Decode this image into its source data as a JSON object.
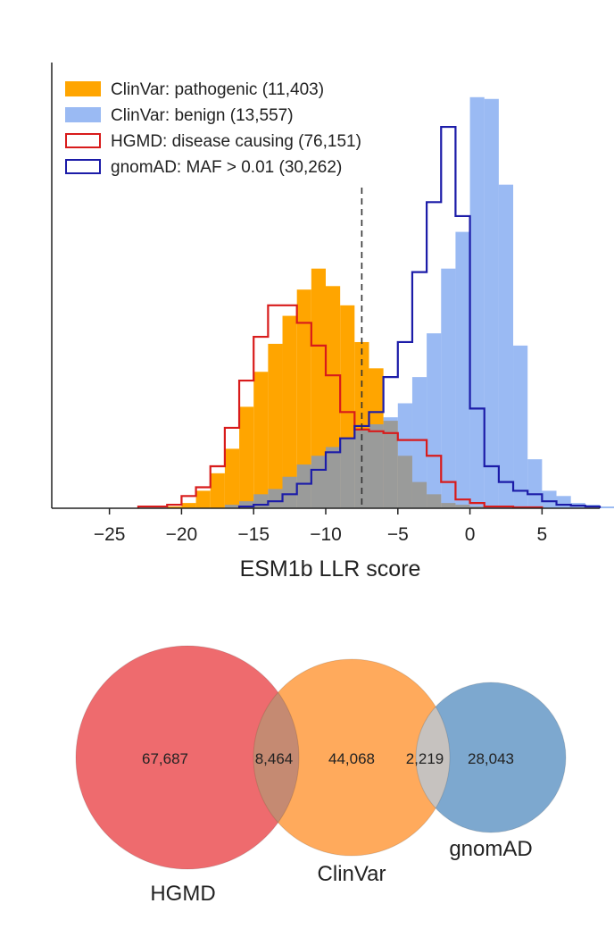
{
  "chart_data": [
    {
      "type": "histogram",
      "xlabel": "ESM1b LLR score",
      "ylabel": "",
      "xlim": [
        -29,
        9
      ],
      "xticks": [
        -25,
        -20,
        -15,
        -10,
        -5,
        0,
        5
      ],
      "xtick_labels": [
        "−25",
        "−20",
        "−15",
        "−10",
        "−5",
        "0",
        "5"
      ],
      "y_axis_ticks": false,
      "legend_position": "top-left",
      "bin_width": 1,
      "series": [
        {
          "name": "ClinVar: pathogenic (11,403)",
          "style": "filled",
          "color": "#ffa500",
          "opacity": 1,
          "bins_start": -21,
          "values": [
            1,
            3,
            10,
            20,
            34,
            58,
            78,
            94,
            110,
            125,
            137,
            127,
            116,
            95,
            80,
            50,
            30,
            15,
            8,
            3,
            2,
            1
          ]
        },
        {
          "name": "ClinVar: benign (13,557)",
          "style": "filled",
          "color": "#6495ed",
          "opacity": 0.65,
          "bins_start": -18,
          "values": [
            0,
            2,
            4,
            8,
            11,
            18,
            25,
            30,
            35,
            40,
            45,
            48,
            52,
            60,
            75,
            100,
            137,
            158,
            235,
            234,
            185,
            93,
            28,
            10,
            7,
            3,
            2,
            1
          ]
        },
        {
          "name": "HGMD: disease causing (76,151)",
          "style": "step",
          "color": "#d81b1b",
          "bins_start": -23,
          "values": [
            1,
            1,
            2,
            7,
            12,
            24,
            46,
            73,
            98,
            116,
            116,
            106,
            93,
            76,
            55,
            45,
            44,
            43,
            39,
            39,
            30,
            15,
            5,
            3,
            1,
            1,
            0.5,
            0.5
          ]
        },
        {
          "name": "gnomAD: MAF > 0.01 (30,262)",
          "style": "step",
          "color": "#1c1ca8",
          "bins_start": -16,
          "values": [
            1,
            2,
            4,
            8,
            14,
            22,
            32,
            40,
            47,
            55,
            75,
            95,
            135,
            175,
            218,
            167,
            57,
            24,
            15,
            10,
            8,
            4,
            2,
            1.5,
            1
          ]
        }
      ],
      "annotations": [
        {
          "type": "vertical-dashed-line",
          "x": -7.5
        }
      ]
    },
    {
      "type": "venn",
      "sets": [
        {
          "name": "HGMD",
          "only": "67,687",
          "color": "#ee6b6e"
        },
        {
          "name": "ClinVar",
          "only": "44,068",
          "color": "#ffaa5c"
        },
        {
          "name": "gnomAD",
          "only": "28,043",
          "color": "#7da8cf"
        }
      ],
      "intersections": [
        {
          "sets": [
            "HGMD",
            "ClinVar"
          ],
          "value": "8,464",
          "color": "#c58a72"
        },
        {
          "sets": [
            "ClinVar",
            "gnomAD"
          ],
          "value": "2,219",
          "color": "#c6c2bf"
        }
      ]
    }
  ]
}
